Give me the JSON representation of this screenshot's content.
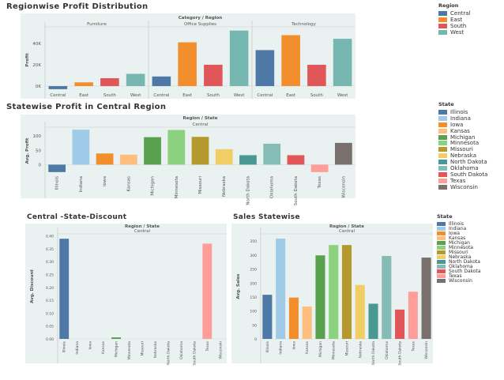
{
  "titles": {
    "regionwise": "Regionwise Profit Distribution",
    "statewise": "Statewise Profit in Central Region",
    "discount": "Central -State-Discount",
    "sales": "Sales Statewise"
  },
  "legends": {
    "region": {
      "title": "Region",
      "items": [
        {
          "label": "Central",
          "color": "#4e79a7"
        },
        {
          "label": "East",
          "color": "#f28e2b"
        },
        {
          "label": "South",
          "color": "#e15759"
        },
        {
          "label": "West",
          "color": "#76b7b2"
        }
      ]
    },
    "state": {
      "title": "State",
      "items": [
        {
          "label": "Illinois",
          "color": "#4e79a7"
        },
        {
          "label": "Indiana",
          "color": "#a0cbe8"
        },
        {
          "label": "Iowa",
          "color": "#f28e2b"
        },
        {
          "label": "Kansas",
          "color": "#ffbe7d"
        },
        {
          "label": "Michigan",
          "color": "#59a14f"
        },
        {
          "label": "Minnesota",
          "color": "#8cd17d"
        },
        {
          "label": "Missouri",
          "color": "#b6992d"
        },
        {
          "label": "Nebraska",
          "color": "#f1ce63"
        },
        {
          "label": "North Dakota",
          "color": "#499894"
        },
        {
          "label": "Oklahoma",
          "color": "#86bcb6"
        },
        {
          "label": "South Dakota",
          "color": "#e15759"
        },
        {
          "label": "Texas",
          "color": "#ff9d9a"
        },
        {
          "label": "Wisconsin",
          "color": "#79706e"
        }
      ]
    }
  },
  "chart_data": [
    {
      "type": "bar",
      "title": "Regionwise Profit Distribution",
      "header": "Category / Region",
      "facets": [
        "Furniture",
        "Office Supplies",
        "Technology"
      ],
      "categories": [
        "Central",
        "East",
        "South",
        "West"
      ],
      "colors": [
        "#4e79a7",
        "#f28e2b",
        "#e15759",
        "#76b7b2"
      ],
      "values": [
        [
          -2900,
          3500,
          7400,
          11500
        ],
        [
          9000,
          41000,
          20000,
          52000
        ],
        [
          33700,
          47700,
          20000,
          44300
        ]
      ],
      "ylabel": "Profit",
      "ylim": [
        -5200,
        54000
      ],
      "yticks": [
        0,
        20000,
        40000
      ],
      "ytick_labels": [
        "0K",
        "20K",
        "40K"
      ],
      "legend": "top-right"
    },
    {
      "type": "bar",
      "title": "Statewise Profit in Central Region",
      "header": "Region / State",
      "facets": [
        "Central"
      ],
      "categories": [
        "Illinois",
        "Indiana",
        "Iowa",
        "Kansas",
        "Michigan",
        "Minnesota",
        "Missouri",
        "Nebraska",
        "North Dakota",
        "Oklahoma",
        "South Dakota",
        "Texas",
        "Wisconsin"
      ],
      "colors": [
        "#4e79a7",
        "#a0cbe8",
        "#f28e2b",
        "#ffbe7d",
        "#59a14f",
        "#8cd17d",
        "#b6992d",
        "#f1ce63",
        "#499894",
        "#86bcb6",
        "#e15759",
        "#ff9d9a",
        "#79706e"
      ],
      "values": [
        [
          -26,
          122,
          39,
          35,
          96,
          121,
          97,
          54,
          33,
          73,
          33,
          -26,
          76
        ]
      ],
      "ylabel": "Avg. Profit",
      "ylim": [
        -32,
        128
      ],
      "yticks": [
        0,
        50,
        100
      ],
      "ytick_labels": [
        "0",
        "50",
        "100"
      ],
      "legend": "right"
    },
    {
      "type": "bar",
      "title": "Central -State-Discount",
      "header": "Region / State",
      "facets": [
        "Central"
      ],
      "categories": [
        "Illinois",
        "Indiana",
        "Iowa",
        "Kansas",
        "Michigan",
        "Minnesota",
        "Missouri",
        "Nebraska",
        "North Dakota",
        "Oklahoma",
        "South Dakota",
        "Texas",
        "Wisconsin"
      ],
      "colors": [
        "#4e79a7",
        "#a0cbe8",
        "#f28e2b",
        "#ffbe7d",
        "#59a14f",
        "#8cd17d",
        "#b6992d",
        "#f1ce63",
        "#499894",
        "#86bcb6",
        "#e15759",
        "#ff9d9a",
        "#79706e"
      ],
      "values": [
        [
          0.389,
          0,
          0,
          0,
          0.006,
          0,
          0,
          0,
          0,
          0,
          0,
          0.37,
          0
        ]
      ],
      "ylabel": "Avg. Discount",
      "ylim": [
        0,
        0.408
      ],
      "yticks": [
        0,
        0.05,
        0.1,
        0.15,
        0.2,
        0.25,
        0.3,
        0.35,
        0.4
      ],
      "ytick_labels": [
        "0.00",
        "0.05",
        "0.10",
        "0.15",
        "0.20",
        "0.25",
        "0.30",
        "0.35",
        "0.40"
      ]
    },
    {
      "type": "bar",
      "title": "Sales Statewise",
      "header": "Region / State",
      "facets": [
        "Central"
      ],
      "categories": [
        "Illinois",
        "Indiana",
        "Iowa",
        "Kansas",
        "Michigan",
        "Minnesota",
        "Missouri",
        "Nebraska",
        "North Dakota",
        "Oklahoma",
        "South Dakota",
        "Texas",
        "Wisconsin"
      ],
      "colors": [
        "#4e79a7",
        "#a0cbe8",
        "#f28e2b",
        "#ffbe7d",
        "#59a14f",
        "#8cd17d",
        "#b6992d",
        "#f1ce63",
        "#499894",
        "#86bcb6",
        "#e15759",
        "#ff9d9a",
        "#79706e"
      ],
      "values": [
        [
          158,
          359,
          148,
          116,
          299,
          336,
          336,
          193,
          126,
          297,
          105,
          169,
          291
        ]
      ],
      "ylabel": "Avg. Sales",
      "ylim": [
        0,
        376
      ],
      "yticks": [
        0,
        50,
        100,
        150,
        200,
        250,
        300,
        350
      ],
      "ytick_labels": [
        "0",
        "50",
        "100",
        "150",
        "200",
        "250",
        "300",
        "350"
      ],
      "legend": "right"
    }
  ]
}
